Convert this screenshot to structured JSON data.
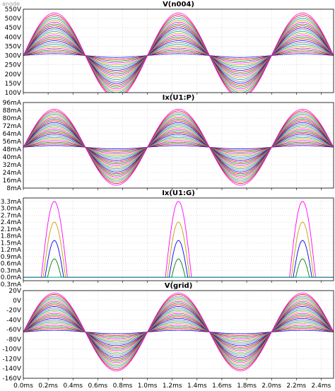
{
  "window": {
    "corner_label": "anode"
  },
  "x_axis": {
    "min": 0.0,
    "max": 2.5,
    "unit": "ms",
    "ticks": [
      "0.0ms",
      "0.2ms",
      "0.4ms",
      "0.6ms",
      "0.8ms",
      "1.0ms",
      "1.2ms",
      "1.4ms",
      "1.6ms",
      "1.8ms",
      "2.0ms",
      "2.2ms",
      "2.4ms"
    ]
  },
  "chart_data": [
    {
      "type": "line",
      "title": "V(n004)",
      "ylabel": "V(n004)",
      "ylim": [
        100,
        550
      ],
      "y_ticks": [
        "550V",
        "500V",
        "450V",
        "400V",
        "350V",
        "300V",
        "250V",
        "200V",
        "150V",
        "100V"
      ],
      "y_tick_values": [
        550,
        500,
        450,
        400,
        350,
        300,
        250,
        200,
        150,
        100
      ],
      "waveform": "sine",
      "frequency_hz": 1000,
      "offset": 300,
      "series_amplitudes": [
        10,
        20,
        30,
        40,
        50,
        60,
        70,
        80,
        90,
        100,
        110,
        120,
        130,
        140,
        150,
        160,
        170,
        180,
        190,
        200,
        210,
        220,
        230
      ],
      "series_colors": [
        "#0000ff",
        "#e60000",
        "#008000",
        "#ff00ff",
        "#c8a000",
        "#00a0a0",
        "#7f7f7f",
        "#0000ff",
        "#e60000",
        "#008000",
        "#ff00ff",
        "#c8a000",
        "#00a0a0",
        "#7f7f7f",
        "#0000ff",
        "#e60000",
        "#008000",
        "#ff00ff",
        "#c8a000",
        "#00a0a0",
        "#7f7f7f",
        "#e60000",
        "#ff00ff"
      ]
    },
    {
      "type": "line",
      "title": "Ix(U1:P)",
      "ylabel": "Ix(U1:P)",
      "ylim": [
        8,
        96
      ],
      "y_ticks": [
        "96mA",
        "88mA",
        "80mA",
        "72mA",
        "64mA",
        "56mA",
        "48mA",
        "40mA",
        "32mA",
        "24mA",
        "16mA",
        "8mA"
      ],
      "y_tick_values": [
        96,
        88,
        80,
        72,
        64,
        56,
        48,
        40,
        32,
        24,
        16,
        8
      ],
      "waveform": "sine",
      "frequency_hz": 1000,
      "offset": 50,
      "note_unit": "mA",
      "series_amplitudes": [
        1.7,
        3.4,
        5.1,
        6.8,
        8.5,
        10.2,
        11.9,
        13.6,
        15.3,
        17,
        18.7,
        20.4,
        22.1,
        23.8,
        25.5,
        27.2,
        28.9,
        30.6,
        32.3,
        34,
        35.7,
        37.4,
        39.1
      ],
      "series_colors": [
        "#0000ff",
        "#e60000",
        "#008000",
        "#ff00ff",
        "#c8a000",
        "#00a0a0",
        "#7f7f7f",
        "#0000ff",
        "#e60000",
        "#008000",
        "#ff00ff",
        "#c8a000",
        "#00a0a0",
        "#7f7f7f",
        "#0000ff",
        "#e60000",
        "#008000",
        "#ff00ff",
        "#c8a000",
        "#00a0a0",
        "#7f7f7f",
        "#e60000",
        "#ff00ff"
      ]
    },
    {
      "type": "line",
      "title": "Ix(U1:G)",
      "ylabel": "Ix(U1:G)",
      "ylim": [
        -0.15,
        3.45
      ],
      "y_ticks": [
        "3.3mA",
        "3.0mA",
        "2.7mA",
        "2.4mA",
        "2.1mA",
        "1.8mA",
        "1.5mA",
        "1.2mA",
        "0.9mA",
        "0.6mA",
        "0.3mA",
        "0.0mA",
        "-0.3mA"
      ],
      "y_tick_values": [
        3.3,
        3.0,
        2.7,
        2.4,
        2.1,
        1.8,
        1.5,
        1.2,
        0.9,
        0.6,
        0.3,
        0.0,
        -0.3
      ],
      "waveform": "grid-current pulses",
      "pulse_centers_ms": [
        0.25,
        1.25,
        2.25
      ],
      "series_peaks": [
        0.8,
        1.6,
        2.4,
        3.3
      ],
      "series_halfwidths_ms": [
        0.055,
        0.075,
        0.09,
        0.105
      ],
      "series_colors": [
        "#008000",
        "#0000ff",
        "#c8a000",
        "#ff00ff"
      ]
    },
    {
      "type": "line",
      "title": "V(grid)",
      "ylabel": "V(grid)",
      "ylim": [
        -160,
        20
      ],
      "y_ticks": [
        "20V",
        "0V",
        "-20V",
        "-40V",
        "-60V",
        "-80V",
        "-100V",
        "-120V",
        "-140V",
        "-160V"
      ],
      "y_tick_values": [
        20,
        0,
        -20,
        -40,
        -60,
        -80,
        -100,
        -120,
        -140,
        -160
      ],
      "waveform": "sine",
      "frequency_hz": 1000,
      "offset": -65,
      "series_amplitudes": [
        3.5,
        7,
        10.5,
        14,
        17.5,
        21,
        24.5,
        28,
        31.5,
        35,
        38.5,
        42,
        45.5,
        49,
        52.5,
        56,
        59.5,
        63,
        66.5,
        70,
        73.5,
        77,
        80
      ],
      "series_colors": [
        "#0000ff",
        "#e60000",
        "#008000",
        "#ff00ff",
        "#c8a000",
        "#00a0a0",
        "#7f7f7f",
        "#0000ff",
        "#e60000",
        "#008000",
        "#ff00ff",
        "#c8a000",
        "#00a0a0",
        "#7f7f7f",
        "#0000ff",
        "#e60000",
        "#008000",
        "#ff00ff",
        "#c8a000",
        "#00a0a0",
        "#7f7f7f",
        "#e60000",
        "#ff00ff"
      ]
    }
  ]
}
